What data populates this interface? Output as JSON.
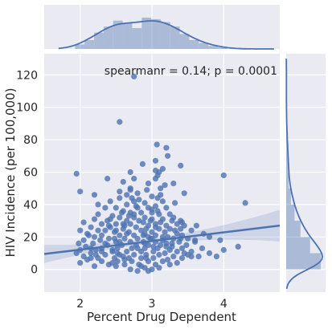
{
  "chart_data": {
    "type": "scatter",
    "xlabel": "Percent Drug Dependent",
    "ylabel": "HIV Incidence (per 100,000)",
    "annotation": "spearmanr = 0.14; p = 0.0001",
    "annotation_position": "top-right",
    "xlim": [
      1.5,
      4.78
    ],
    "ylim": [
      -14,
      133
    ],
    "xticks": [
      2,
      3,
      4
    ],
    "yticks": [
      0,
      20,
      40,
      60,
      80,
      100,
      120
    ],
    "grid": true,
    "regression": {
      "x_start": 1.5,
      "y_start": 9.5,
      "x_end": 4.78,
      "y_end": 27.0
    },
    "hist_x_range": [
      1.93,
      4.05
    ],
    "hist_x_counts": [
      6,
      12,
      22,
      30,
      38,
      35,
      28,
      42,
      40,
      36,
      30,
      20,
      12,
      8,
      4,
      2
    ],
    "hist_y_range": [
      0,
      130
    ],
    "hist_y_counts": [
      58,
      40,
      24,
      14,
      8,
      4,
      3,
      2,
      1,
      0.5,
      0.3,
      0.3,
      0.3
    ],
    "points": [
      [
        2.75,
        119
      ],
      [
        2.55,
        91
      ],
      [
        3.07,
        77
      ],
      [
        3.2,
        75
      ],
      [
        3.05,
        67
      ],
      [
        3.22,
        70
      ],
      [
        2.87,
        65
      ],
      [
        3.15,
        62
      ],
      [
        2.7,
        60
      ],
      [
        3.05,
        61
      ],
      [
        3.4,
        64
      ],
      [
        3.1,
        60
      ],
      [
        3.08,
        58
      ],
      [
        2.38,
        56
      ],
      [
        1.95,
        59
      ],
      [
        2.75,
        56
      ],
      [
        3.05,
        56
      ],
      [
        4.0,
        58
      ],
      [
        2.6,
        54
      ],
      [
        2.95,
        53
      ],
      [
        3.3,
        53
      ],
      [
        2.7,
        50
      ],
      [
        2.93,
        49
      ],
      [
        3.12,
        50
      ],
      [
        2.55,
        48
      ],
      [
        2.8,
        47
      ],
      [
        3.45,
        47
      ],
      [
        2.0,
        48
      ],
      [
        2.2,
        46
      ],
      [
        2.65,
        46
      ],
      [
        2.55,
        44
      ],
      [
        2.72,
        44
      ],
      [
        3.0,
        45
      ],
      [
        3.08,
        44
      ],
      [
        2.75,
        42
      ],
      [
        2.9,
        41
      ],
      [
        3.15,
        42
      ],
      [
        3.32,
        41
      ],
      [
        4.3,
        41
      ],
      [
        2.42,
        42
      ],
      [
        2.65,
        40
      ],
      [
        2.8,
        38
      ],
      [
        2.95,
        38
      ],
      [
        3.05,
        39
      ],
      [
        3.2,
        38
      ],
      [
        2.35,
        38
      ],
      [
        2.5,
        38
      ],
      [
        2.6,
        36
      ],
      [
        2.7,
        35
      ],
      [
        2.85,
        35
      ],
      [
        3.0,
        35
      ],
      [
        3.1,
        34
      ],
      [
        3.25,
        34
      ],
      [
        2.25,
        34
      ],
      [
        2.45,
        33
      ],
      [
        2.55,
        32
      ],
      [
        2.75,
        32
      ],
      [
        2.9,
        32
      ],
      [
        3.0,
        31
      ],
      [
        2.2,
        31
      ],
      [
        2.38,
        30
      ],
      [
        2.65,
        30
      ],
      [
        2.82,
        30
      ],
      [
        3.15,
        31
      ],
      [
        3.28,
        30
      ],
      [
        3.42,
        29
      ],
      [
        2.05,
        29
      ],
      [
        2.3,
        28
      ],
      [
        2.5,
        28
      ],
      [
        2.7,
        28
      ],
      [
        2.95,
        27
      ],
      [
        3.05,
        28
      ],
      [
        3.2,
        27
      ],
      [
        3.35,
        28
      ],
      [
        3.45,
        27
      ],
      [
        3.62,
        27
      ],
      [
        2.15,
        26
      ],
      [
        2.42,
        26
      ],
      [
        2.6,
        25
      ],
      [
        2.78,
        26
      ],
      [
        2.92,
        25
      ],
      [
        3.1,
        25
      ],
      [
        3.25,
        25
      ],
      [
        3.4,
        25
      ],
      [
        2.0,
        24
      ],
      [
        2.25,
        24
      ],
      [
        2.48,
        23
      ],
      [
        2.68,
        23
      ],
      [
        2.85,
        24
      ],
      [
        3.0,
        23
      ],
      [
        3.18,
        23
      ],
      [
        3.35,
        22
      ],
      [
        3.55,
        24
      ],
      [
        2.1,
        22
      ],
      [
        2.3,
        21
      ],
      [
        2.55,
        21
      ],
      [
        2.75,
        21
      ],
      [
        2.9,
        22
      ],
      [
        3.05,
        21
      ],
      [
        3.22,
        20
      ],
      [
        3.42,
        21
      ],
      [
        2.2,
        20
      ],
      [
        2.4,
        19
      ],
      [
        2.62,
        19
      ],
      [
        2.8,
        19
      ],
      [
        2.98,
        19
      ],
      [
        3.15,
        18
      ],
      [
        3.3,
        19
      ],
      [
        3.5,
        19
      ],
      [
        3.8,
        20
      ],
      [
        2.05,
        18
      ],
      [
        2.28,
        18
      ],
      [
        2.5,
        17
      ],
      [
        2.7,
        17
      ],
      [
        2.88,
        17
      ],
      [
        3.05,
        17
      ],
      [
        3.2,
        16
      ],
      [
        3.38,
        17
      ],
      [
        3.6,
        17
      ],
      [
        1.98,
        16
      ],
      [
        2.18,
        16
      ],
      [
        2.38,
        15
      ],
      [
        2.58,
        15
      ],
      [
        2.78,
        15
      ],
      [
        2.95,
        15
      ],
      [
        3.12,
        15
      ],
      [
        3.28,
        14
      ],
      [
        3.48,
        15
      ],
      [
        2.08,
        14
      ],
      [
        2.3,
        13
      ],
      [
        2.52,
        13
      ],
      [
        2.72,
        13
      ],
      [
        2.9,
        13
      ],
      [
        3.08,
        13
      ],
      [
        3.25,
        12
      ],
      [
        3.42,
        13
      ],
      [
        3.7,
        13
      ],
      [
        2.0,
        12
      ],
      [
        2.22,
        12
      ],
      [
        2.45,
        11
      ],
      [
        2.65,
        11
      ],
      [
        2.85,
        11
      ],
      [
        3.02,
        11
      ],
      [
        3.18,
        10
      ],
      [
        3.35,
        11
      ],
      [
        3.55,
        11
      ],
      [
        1.95,
        10
      ],
      [
        2.15,
        10
      ],
      [
        2.35,
        9
      ],
      [
        2.55,
        9
      ],
      [
        2.75,
        9
      ],
      [
        2.92,
        9
      ],
      [
        3.1,
        9
      ],
      [
        3.3,
        8
      ],
      [
        3.5,
        9
      ],
      [
        3.9,
        8
      ],
      [
        2.05,
        8
      ],
      [
        2.25,
        7
      ],
      [
        2.48,
        7
      ],
      [
        2.68,
        7
      ],
      [
        2.85,
        7
      ],
      [
        3.02,
        7
      ],
      [
        3.22,
        6
      ],
      [
        3.42,
        7
      ],
      [
        3.65,
        8
      ],
      [
        2.1,
        6
      ],
      [
        2.3,
        5
      ],
      [
        2.52,
        5
      ],
      [
        2.72,
        5
      ],
      [
        2.95,
        5
      ],
      [
        3.15,
        5
      ],
      [
        3.35,
        4
      ],
      [
        2.0,
        4
      ],
      [
        2.4,
        3
      ],
      [
        2.62,
        3
      ],
      [
        2.82,
        3
      ],
      [
        3.05,
        3
      ],
      [
        3.25,
        3
      ],
      [
        2.2,
        2
      ],
      [
        2.5,
        2
      ],
      [
        2.9,
        1
      ],
      [
        3.1,
        1
      ],
      [
        2.7,
        0
      ],
      [
        3.0,
        0
      ],
      [
        2.8,
        -1
      ],
      [
        2.95,
        -1
      ],
      [
        2.15,
        7
      ],
      [
        2.6,
        8
      ],
      [
        2.45,
        12
      ],
      [
        3.2,
        14
      ],
      [
        2.35,
        16
      ],
      [
        2.95,
        20
      ],
      [
        2.5,
        24
      ],
      [
        2.62,
        27
      ],
      [
        2.88,
        29
      ],
      [
        2.42,
        31
      ],
      [
        3.3,
        32
      ],
      [
        2.58,
        35
      ],
      [
        3.0,
        37
      ],
      [
        2.25,
        40
      ],
      [
        2.82,
        43
      ],
      [
        3.12,
        46
      ],
      [
        2.7,
        49
      ],
      [
        3.18,
        52
      ],
      [
        2.3,
        11
      ],
      [
        2.8,
        13
      ],
      [
        3.45,
        10
      ],
      [
        2.55,
        17
      ],
      [
        3.0,
        19
      ],
      [
        2.65,
        22
      ],
      [
        3.32,
        24
      ],
      [
        2.12,
        21
      ],
      [
        2.4,
        27
      ],
      [
        2.98,
        30
      ],
      [
        2.68,
        33
      ],
      [
        3.08,
        36
      ],
      [
        2.78,
        39
      ],
      [
        3.55,
        8
      ],
      [
        2.45,
        4
      ],
      [
        2.85,
        2
      ],
      [
        3.15,
        20
      ],
      [
        2.6,
        28
      ],
      [
        3.4,
        19
      ],
      [
        2.15,
        13
      ],
      [
        2.9,
        16
      ],
      [
        3.05,
        26
      ],
      [
        2.75,
        34
      ],
      [
        2.35,
        24
      ],
      [
        3.28,
        16
      ],
      [
        2.52,
        10
      ],
      [
        2.92,
        7
      ],
      [
        3.12,
        29
      ],
      [
        2.22,
        9
      ],
      [
        2.88,
        21
      ],
      [
        3.4,
        30
      ],
      [
        2.48,
        19
      ],
      [
        3.02,
        14
      ],
      [
        2.62,
        6
      ],
      [
        3.8,
        10
      ],
      [
        3.95,
        18
      ],
      [
        4.2,
        14
      ],
      [
        4.0,
        12
      ],
      [
        3.72,
        22
      ],
      [
        3.6,
        18
      ]
    ]
  }
}
